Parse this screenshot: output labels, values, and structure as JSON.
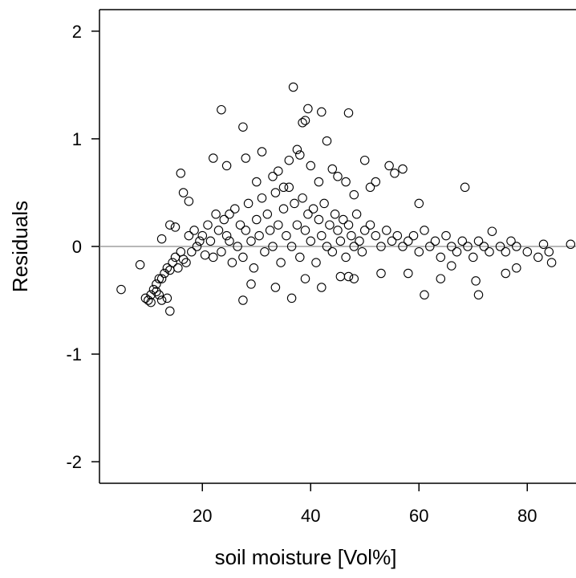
{
  "chart_data": {
    "type": "scatter",
    "title": "",
    "xlabel": "soil moisture [Vol%]",
    "ylabel": "Residuals",
    "xlim": [
      1,
      89
    ],
    "ylim": [
      -2.2,
      2.2
    ],
    "xticks": [
      20,
      40,
      60,
      80
    ],
    "xtick_labels": [
      "20",
      "40",
      "60",
      "80"
    ],
    "yticks": [
      -2,
      -1,
      0,
      1,
      2
    ],
    "ytick_labels": [
      "-2",
      "-1",
      "0",
      "1",
      "2"
    ],
    "reference_line_y": 0,
    "grid": false,
    "legend": "none",
    "marker": "open-circle",
    "colors": {
      "points": "#000000",
      "reference_line": "#8c8c8c",
      "axes": "#000000",
      "background": "#ffffff"
    },
    "series": [
      {
        "values_note_free": true,
        "x": [
          5.0,
          8.5,
          9.5,
          10.0,
          10.5,
          11.0,
          11.5,
          12.0,
          12.5,
          13.0,
          13.5,
          14.0,
          14.5,
          15.0,
          15.5,
          16.0,
          16.5,
          17.0,
          17.5,
          18.0,
          18.5,
          19.0,
          19.5,
          20.0,
          20.5,
          21.0,
          21.5,
          22.0,
          22.5,
          23.0,
          23.5,
          24.0,
          24.5,
          25.0,
          25.5,
          26.0,
          26.5,
          27.0,
          27.5,
          28.0,
          28.5,
          29.0,
          29.5,
          30.0,
          30.5,
          31.0,
          31.5,
          32.0,
          32.5,
          33.0,
          33.5,
          34.0,
          34.5,
          35.0,
          35.5,
          36.0,
          36.5,
          37.0,
          37.5,
          38.0,
          38.5,
          39.0,
          39.5,
          40.0,
          40.5,
          41.0,
          41.5,
          42.0,
          42.5,
          43.0,
          43.5,
          44.0,
          44.5,
          45.0,
          45.5,
          46.0,
          46.5,
          47.0,
          47.5,
          48.0,
          48.5,
          49.0,
          49.5,
          50.0,
          51.0,
          52.0,
          53.0,
          54.0,
          55.0,
          56.0,
          57.0,
          58.0,
          59.0,
          60.0,
          61.0,
          62.0,
          63.0,
          64.0,
          65.0,
          66.0,
          67.0,
          68.0,
          69.0,
          70.0,
          71.0,
          72.0,
          73.0,
          75.0,
          76.0,
          77.0,
          78.0,
          80.0,
          82.0,
          83.0,
          84.0,
          88.0,
          16.0,
          16.5,
          17.5,
          22.0,
          23.5,
          24.5,
          27.5,
          28.0,
          30.0,
          31.0,
          33.0,
          34.0,
          35.0,
          36.0,
          36.8,
          37.5,
          38.0,
          38.5,
          39.0,
          39.5,
          40.0,
          41.5,
          42.0,
          43.0,
          44.0,
          45.0,
          46.5,
          47.0,
          48.0,
          50.0,
          51.0,
          52.0,
          54.5,
          55.5,
          57.0,
          60.0,
          68.5,
          14.0,
          12.0,
          12.5,
          13.5,
          10.5,
          11.5,
          27.5,
          33.5,
          36.5,
          42.0,
          61.0,
          71.0,
          48.0,
          39.0,
          47.0,
          64.0,
          70.5,
          76.0,
          84.5,
          12.5,
          14.0,
          15.0,
          25.0,
          29.0,
          45.5,
          53.0,
          58.0,
          66.0,
          73.5,
          78.0
        ],
        "y": [
          -0.4,
          -0.17,
          -0.48,
          -0.5,
          -0.45,
          -0.4,
          -0.35,
          -0.3,
          -0.3,
          -0.25,
          -0.2,
          -0.22,
          -0.15,
          -0.1,
          -0.2,
          -0.05,
          -0.12,
          -0.15,
          0.1,
          -0.05,
          0.15,
          0.0,
          0.05,
          0.1,
          -0.08,
          0.2,
          0.05,
          -0.1,
          0.3,
          0.15,
          -0.05,
          0.25,
          0.1,
          0.05,
          -0.15,
          0.35,
          0.0,
          0.2,
          -0.1,
          0.15,
          0.4,
          0.05,
          -0.2,
          0.25,
          0.1,
          0.45,
          -0.05,
          0.3,
          0.15,
          0.0,
          0.5,
          0.2,
          -0.15,
          0.35,
          0.1,
          0.55,
          0.0,
          0.4,
          0.2,
          -0.1,
          0.45,
          0.15,
          0.3,
          0.05,
          0.35,
          -0.15,
          0.25,
          0.1,
          0.4,
          0.0,
          0.2,
          -0.05,
          0.3,
          0.15,
          0.05,
          0.25,
          -0.1,
          0.2,
          0.1,
          0.0,
          0.3,
          0.05,
          -0.05,
          0.15,
          0.2,
          0.1,
          0.0,
          0.15,
          0.05,
          0.1,
          0.0,
          0.05,
          0.1,
          -0.05,
          0.15,
          0.0,
          0.05,
          -0.1,
          0.1,
          0.0,
          -0.05,
          0.05,
          0.0,
          -0.1,
          0.05,
          0.0,
          -0.05,
          0.0,
          -0.05,
          0.05,
          0.0,
          -0.05,
          -0.1,
          0.02,
          -0.05,
          0.02,
          0.68,
          0.5,
          0.42,
          0.82,
          1.27,
          0.75,
          1.11,
          0.82,
          0.6,
          0.88,
          0.65,
          0.7,
          0.55,
          0.8,
          1.48,
          0.9,
          0.85,
          1.15,
          1.17,
          1.28,
          0.75,
          0.6,
          1.25,
          0.98,
          0.72,
          0.65,
          0.6,
          1.24,
          0.48,
          0.8,
          0.55,
          0.6,
          0.75,
          0.68,
          0.72,
          0.4,
          0.55,
          -0.6,
          -0.45,
          -0.5,
          -0.48,
          -0.52,
          -0.42,
          -0.5,
          -0.38,
          -0.48,
          -0.38,
          -0.45,
          -0.45,
          -0.3,
          -0.3,
          -0.28,
          -0.3,
          -0.32,
          -0.25,
          -0.15,
          0.07,
          0.2,
          0.18,
          0.3,
          -0.35,
          -0.28,
          -0.25,
          -0.25,
          -0.18,
          0.14,
          -0.2
        ]
      }
    ]
  }
}
